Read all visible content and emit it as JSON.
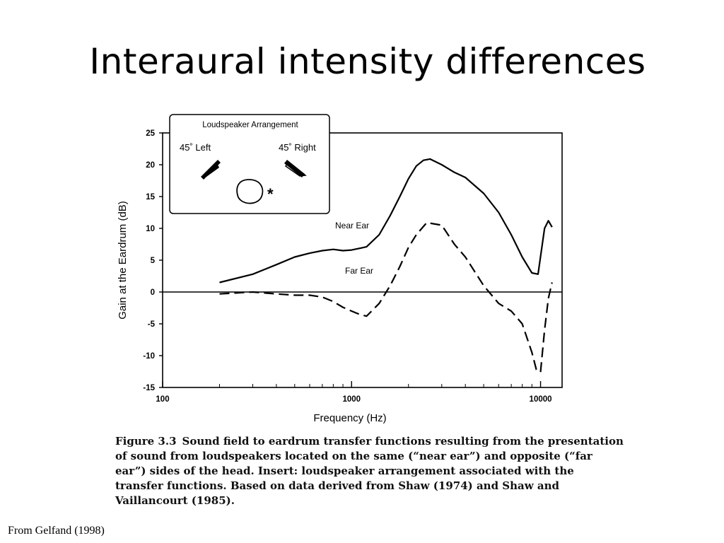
{
  "slide": {
    "title": "Interaural intensity differences",
    "source": "From Gelfand (1998)"
  },
  "caption": {
    "label": "Figure 3.3",
    "text": "Sound field to eardrum transfer functions resulting from the presentation of sound from loudspeakers located on the same (“near ear”) and opposite (“far ear”) sides of the head. Insert: loudspeaker arrangement associated with the transfer functions. Based on data derived from Shaw (1974) and Shaw and Vaillancourt (1985)."
  },
  "inset": {
    "title": "Loudspeaker Arrangement",
    "left_label": "45˚ Left",
    "right_label": "45˚ Right",
    "marker": "*"
  },
  "chart_data": {
    "type": "line",
    "xlabel": "Frequency (Hz)",
    "ylabel": "Gain at the Eardrum (dB)",
    "xscale": "log",
    "xlim": [
      100,
      13000
    ],
    "ylim": [
      -15,
      25
    ],
    "xticks": [
      100,
      1000,
      10000
    ],
    "xtick_labels": [
      "100",
      "1000",
      "10000"
    ],
    "yticks": [
      -15,
      -10,
      -5,
      0,
      5,
      10,
      15,
      20,
      25
    ],
    "reference_line": 0,
    "series": [
      {
        "name": "Near Ear",
        "style": "solid",
        "x": [
          200,
          300,
          400,
          500,
          600,
          700,
          800,
          900,
          1000,
          1200,
          1400,
          1600,
          1800,
          2000,
          2200,
          2400,
          2600,
          3000,
          3500,
          4000,
          5000,
          6000,
          7000,
          8000,
          9000,
          9700,
          10500,
          11000,
          11500
        ],
        "y": [
          1.5,
          2.8,
          4.3,
          5.5,
          6.1,
          6.5,
          6.7,
          6.5,
          6.6,
          7.1,
          9.0,
          12.0,
          15.0,
          17.8,
          19.8,
          20.7,
          20.9,
          20.0,
          18.8,
          18.0,
          15.5,
          12.5,
          9.0,
          5.5,
          3.0,
          2.8,
          10.0,
          11.2,
          10.2
        ]
      },
      {
        "name": "Far Ear",
        "style": "dashed",
        "x": [
          200,
          300,
          400,
          500,
          600,
          700,
          800,
          900,
          1000,
          1100,
          1200,
          1400,
          1600,
          1800,
          2000,
          2200,
          2500,
          3000,
          3500,
          4000,
          5000,
          6000,
          7000,
          8000,
          9000,
          9500,
          10000,
          10500,
          11000,
          11500
        ],
        "y": [
          -0.3,
          0,
          -0.3,
          -0.5,
          -0.5,
          -0.8,
          -1.5,
          -2.4,
          -3.0,
          -3.5,
          -3.8,
          -1.8,
          1.0,
          4.0,
          7.0,
          9.0,
          10.9,
          10.5,
          7.5,
          5.5,
          1.0,
          -1.8,
          -3.0,
          -5.0,
          -9.5,
          -12.2,
          -12.6,
          -6.0,
          -1.0,
          1.5
        ]
      }
    ]
  }
}
